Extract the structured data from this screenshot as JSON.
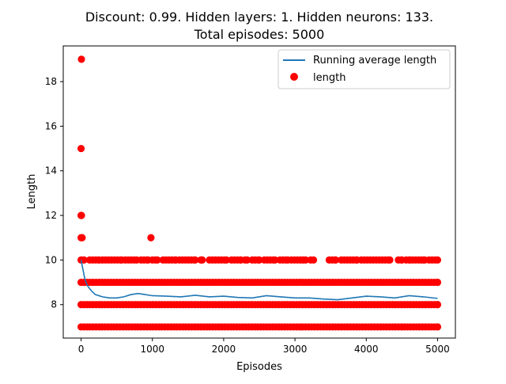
{
  "chart_data": {
    "type": "scatter",
    "title_lines": [
      "Discount: 0.99. Hidden layers: 1. Hidden neurons: 133.",
      "Total episodes: 5000"
    ],
    "xlabel": "Episodes",
    "ylabel": "Length",
    "xlim": [
      -250,
      5250
    ],
    "ylim": [
      6.5,
      19.6
    ],
    "xticks": [
      0,
      1000,
      2000,
      3000,
      4000,
      5000
    ],
    "yticks": [
      8,
      10,
      12,
      14,
      16,
      18
    ],
    "grid": false,
    "legend_position": "top-right",
    "series": [
      {
        "name": "Running average length",
        "kind": "line",
        "color": "#1f77b4",
        "x": [
          0,
          25,
          50,
          75,
          100,
          150,
          200,
          300,
          400,
          500,
          600,
          700,
          800,
          900,
          1000,
          1200,
          1400,
          1600,
          1800,
          2000,
          2200,
          2400,
          2600,
          2800,
          3000,
          3200,
          3400,
          3600,
          3800,
          4000,
          4200,
          4400,
          4600,
          4800,
          5000
        ],
        "y": [
          10.0,
          9.6,
          9.2,
          8.95,
          8.8,
          8.6,
          8.45,
          8.35,
          8.3,
          8.3,
          8.35,
          8.45,
          8.5,
          8.45,
          8.4,
          8.38,
          8.35,
          8.42,
          8.35,
          8.38,
          8.32,
          8.3,
          8.4,
          8.35,
          8.3,
          8.3,
          8.25,
          8.22,
          8.3,
          8.38,
          8.35,
          8.3,
          8.4,
          8.35,
          8.28
        ]
      },
      {
        "name": "length",
        "kind": "scatter",
        "color": "#ff0000",
        "bands": [
          {
            "y": 7,
            "ranges": [
              [
                0,
                5000
              ]
            ]
          },
          {
            "y": 8,
            "ranges": [
              [
                0,
                5000
              ]
            ]
          },
          {
            "y": 9,
            "ranges": [
              [
                0,
                5000
              ]
            ]
          },
          {
            "y": 10,
            "ranges": [
              [
                0,
                40
              ],
              [
                120,
                250
              ],
              [
                300,
                570
              ],
              [
                620,
                780
              ],
              [
                840,
                940
              ],
              [
                1000,
                1070
              ],
              [
                1150,
                1330
              ],
              [
                1380,
                1600
              ],
              [
                1680,
                1700
              ],
              [
                1800,
                2040
              ],
              [
                2110,
                2240
              ],
              [
                2300,
                2330
              ],
              [
                2400,
                2500
              ],
              [
                2570,
                2720
              ],
              [
                2790,
                2900
              ],
              [
                2950,
                3150
              ],
              [
                3220,
                3260
              ],
              [
                3480,
                3570
              ],
              [
                3650,
                3870
              ],
              [
                3930,
                4330
              ],
              [
                4450,
                4500
              ],
              [
                4560,
                4610
              ],
              [
                4650,
                4770
              ],
              [
                4800,
                4820
              ],
              [
                4880,
                5000
              ]
            ]
          }
        ],
        "outliers": [
          {
            "x": 5,
            "y": 19
          },
          {
            "x": 0,
            "y": 15
          },
          {
            "x": 0,
            "y": 12
          },
          {
            "x": 5,
            "y": 12
          },
          {
            "x": 0,
            "y": 11
          },
          {
            "x": 15,
            "y": 11
          },
          {
            "x": 980,
            "y": 11
          }
        ]
      }
    ]
  }
}
